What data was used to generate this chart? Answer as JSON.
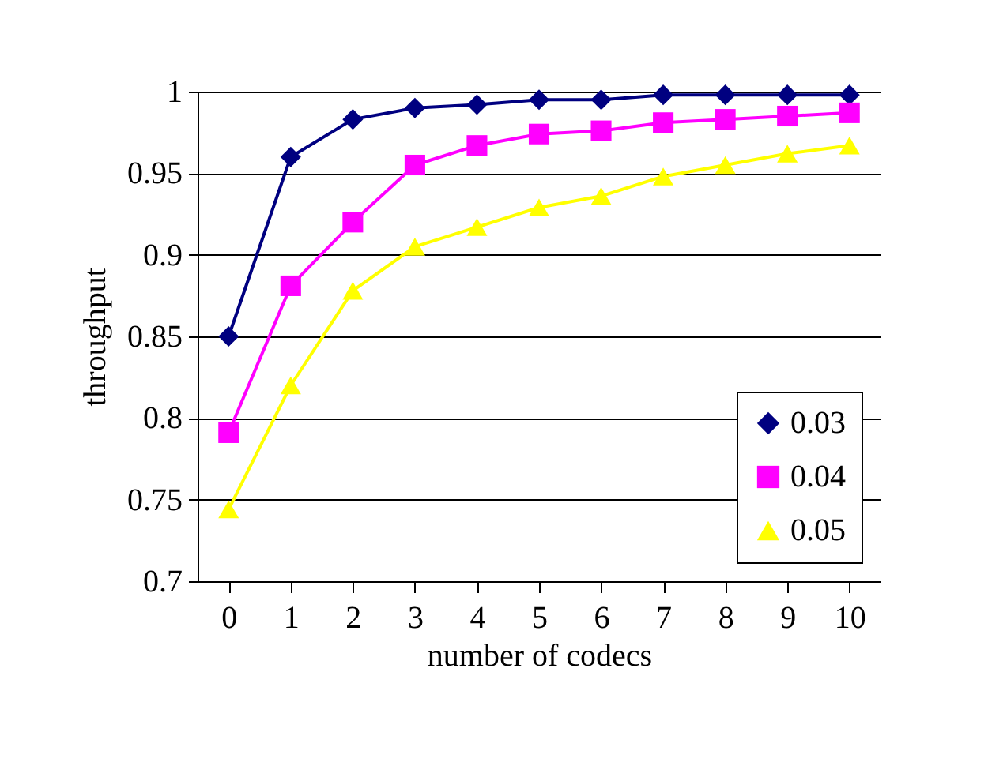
{
  "chart_data": {
    "type": "line",
    "xlabel": "number of codecs",
    "ylabel": "throughput",
    "categories": [
      "0",
      "1",
      "2",
      "3",
      "4",
      "5",
      "6",
      "7",
      "8",
      "9",
      "10"
    ],
    "series": [
      {
        "name": "0.03",
        "color": "#000080",
        "marker": "diamond",
        "values": [
          0.85,
          0.96,
          0.983,
          0.99,
          0.992,
          0.995,
          0.995,
          0.998,
          0.998,
          0.998,
          0.998
        ]
      },
      {
        "name": "0.04",
        "color": "#ff00ff",
        "marker": "square",
        "values": [
          0.791,
          0.881,
          0.92,
          0.955,
          0.967,
          0.974,
          0.976,
          0.981,
          0.983,
          0.985,
          0.987
        ]
      },
      {
        "name": "0.05",
        "color": "#ffff00",
        "marker": "triangle",
        "values": [
          0.744,
          0.82,
          0.878,
          0.905,
          0.917,
          0.929,
          0.936,
          0.948,
          0.955,
          0.962,
          0.967
        ]
      }
    ],
    "ylim": [
      0.7,
      1
    ],
    "yticks": [
      0.7,
      0.75,
      0.8,
      0.85,
      0.9,
      0.95,
      1
    ],
    "grid": "y",
    "legend": "bottom right"
  }
}
